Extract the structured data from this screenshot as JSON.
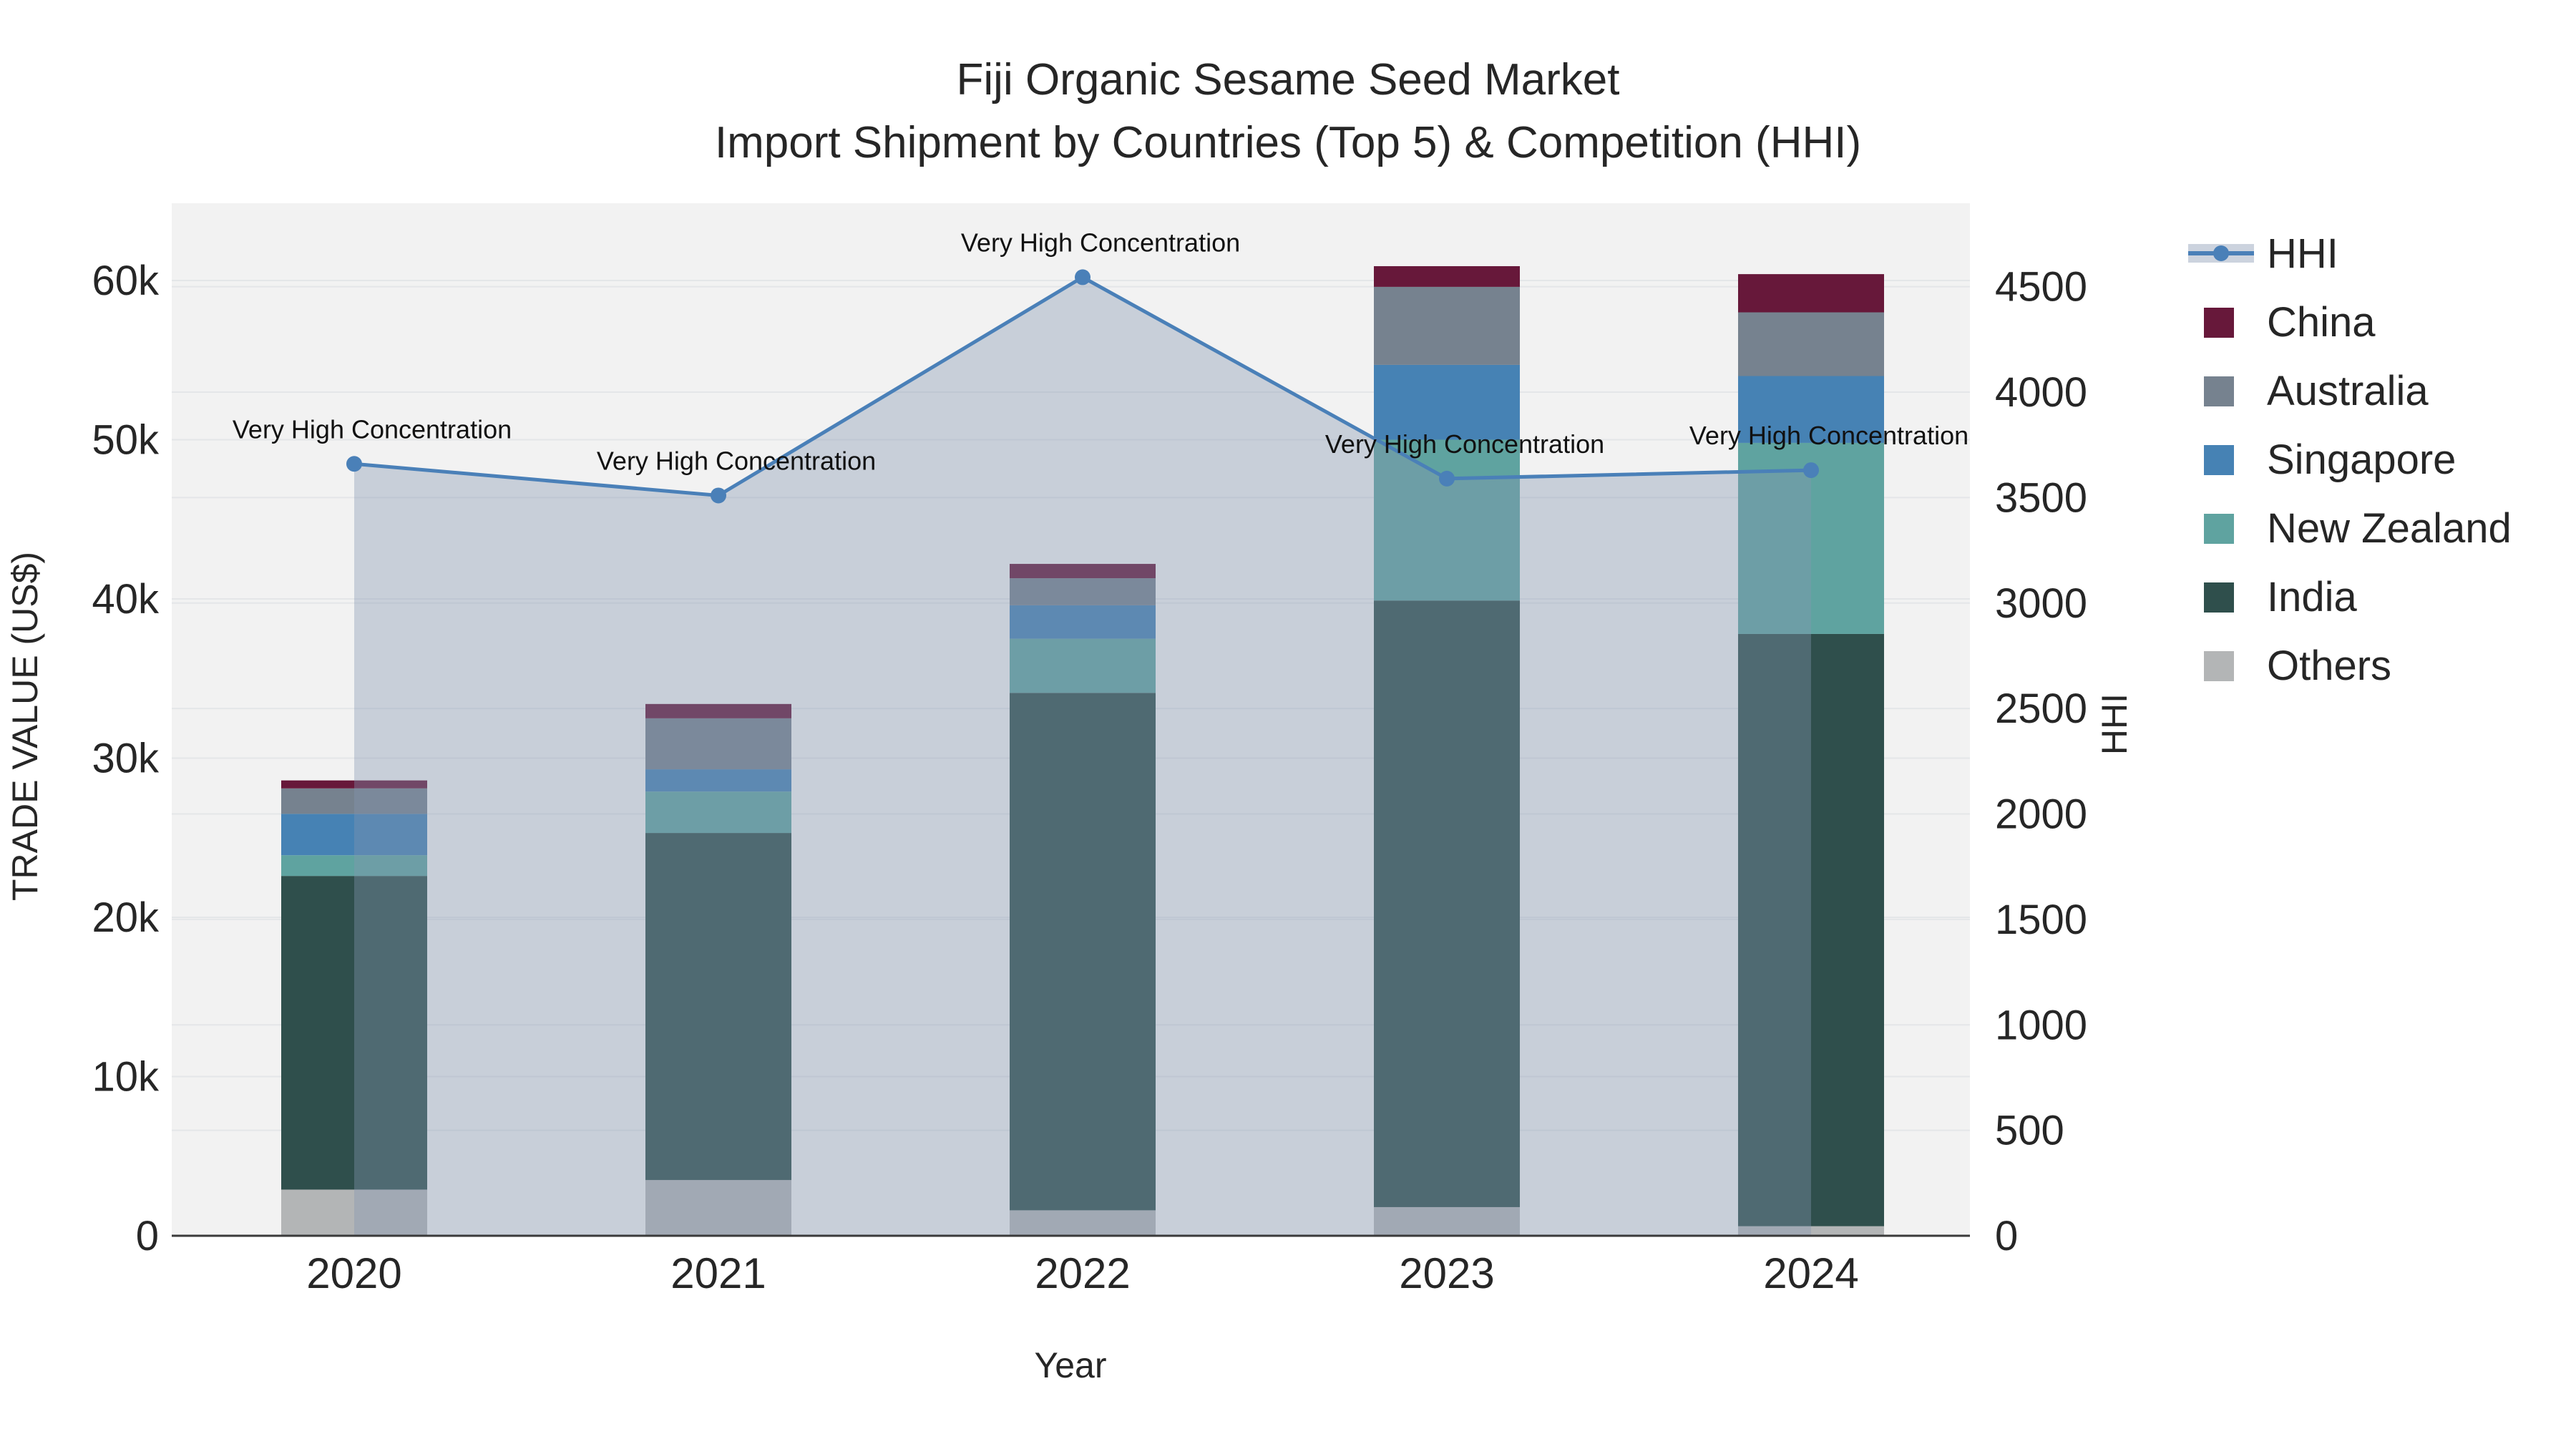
{
  "title": {
    "line1": "Fiji Organic Sesame Seed Market",
    "line2": "Import Shipment by Countries (Top 5) & Competition (HHI)"
  },
  "axes": {
    "x": {
      "title": "Year",
      "ticks": [
        "2020",
        "2021",
        "2022",
        "2023",
        "2024"
      ]
    },
    "y_left": {
      "title": "TRADE VALUE (US$)",
      "ticks": [
        "0",
        "10k",
        "20k",
        "30k",
        "40k",
        "50k",
        "60k"
      ]
    },
    "y_right": {
      "title": "HHI",
      "ticks": [
        "0",
        "500",
        "1000",
        "1500",
        "2000",
        "2500",
        "3000",
        "3500",
        "4000",
        "4500"
      ]
    }
  },
  "legend": {
    "items": [
      {
        "label": "HHI",
        "type": "line",
        "color": "#4a80b8"
      },
      {
        "label": "China",
        "type": "swatch",
        "color": "#67183a"
      },
      {
        "label": "Australia",
        "type": "swatch",
        "color": "#76828f"
      },
      {
        "label": "Singapore",
        "type": "swatch",
        "color": "#4682b4"
      },
      {
        "label": "New Zealand",
        "type": "swatch",
        "color": "#5fa3a0"
      },
      {
        "label": "India",
        "type": "swatch",
        "color": "#2f4f4c"
      },
      {
        "label": "Others",
        "type": "swatch",
        "color": "#b3b5b6"
      }
    ]
  },
  "chart_data": {
    "type": "bar",
    "subtype": "stacked-bars-with-line",
    "title": "Fiji Organic Sesame Seed Market — Import Shipment by Countries (Top 5) & Competition (HHI)",
    "xlabel": "Year",
    "ylabel_left": "TRADE VALUE (US$)",
    "ylabel_right": "HHI",
    "ylim_left_kUSD": [
      0,
      64.9
    ],
    "ylim_right_hhi": [
      0,
      4900
    ],
    "grid": true,
    "legend_position": "right",
    "categories": [
      2020,
      2021,
      2022,
      2023,
      2024
    ],
    "stack_order_bottom_to_top": [
      "Others",
      "India",
      "New Zealand",
      "Singapore",
      "Australia",
      "China"
    ],
    "series_trade_value_kUSD": [
      {
        "name": "Others",
        "color": "#b3b5b6",
        "values": [
          2.9,
          3.5,
          1.6,
          1.8,
          0.6
        ]
      },
      {
        "name": "India",
        "color": "#2f4f4c",
        "values": [
          19.7,
          21.8,
          32.5,
          38.1,
          37.2
        ]
      },
      {
        "name": "New Zealand",
        "color": "#5fa3a0",
        "values": [
          1.3,
          2.6,
          3.4,
          10.1,
          12.0
        ]
      },
      {
        "name": "Singapore",
        "color": "#4682b4",
        "values": [
          2.6,
          1.4,
          2.1,
          4.7,
          4.2
        ]
      },
      {
        "name": "Australia",
        "color": "#76828f",
        "values": [
          1.6,
          3.2,
          1.7,
          4.9,
          4.0
        ]
      },
      {
        "name": "China",
        "color": "#67183a",
        "values": [
          0.5,
          0.9,
          0.9,
          1.3,
          2.4
        ]
      }
    ],
    "bar_totals_kUSD": [
      28.6,
      33.4,
      42.2,
      60.9,
      60.4
    ],
    "hhi_line": {
      "name": "HHI",
      "color": "#4a80b8",
      "area_fill": "rgba(131,151,177,0.38)",
      "values": [
        3660,
        3510,
        4545,
        3590,
        3630
      ]
    },
    "annotations": [
      {
        "text": "Very High Concentration",
        "year": 2020
      },
      {
        "text": "Very High Concentration",
        "year": 2021
      },
      {
        "text": "Very High Concentration",
        "year": 2022
      },
      {
        "text": "Very High Concentration",
        "year": 2023
      },
      {
        "text": "Very High Concentration",
        "year": 2024
      }
    ]
  },
  "colors": {
    "plot_background": "#f2f2f2",
    "gridline": "#e4e6e8",
    "axis_line": "#3a3a3a",
    "tick_text": "#262626",
    "annotation_text": "#111111",
    "hhi_line": "#4a80b8",
    "hhi_area": "rgba(131,151,177,0.38)",
    "legend_hhi_band": "#ccd3de"
  }
}
